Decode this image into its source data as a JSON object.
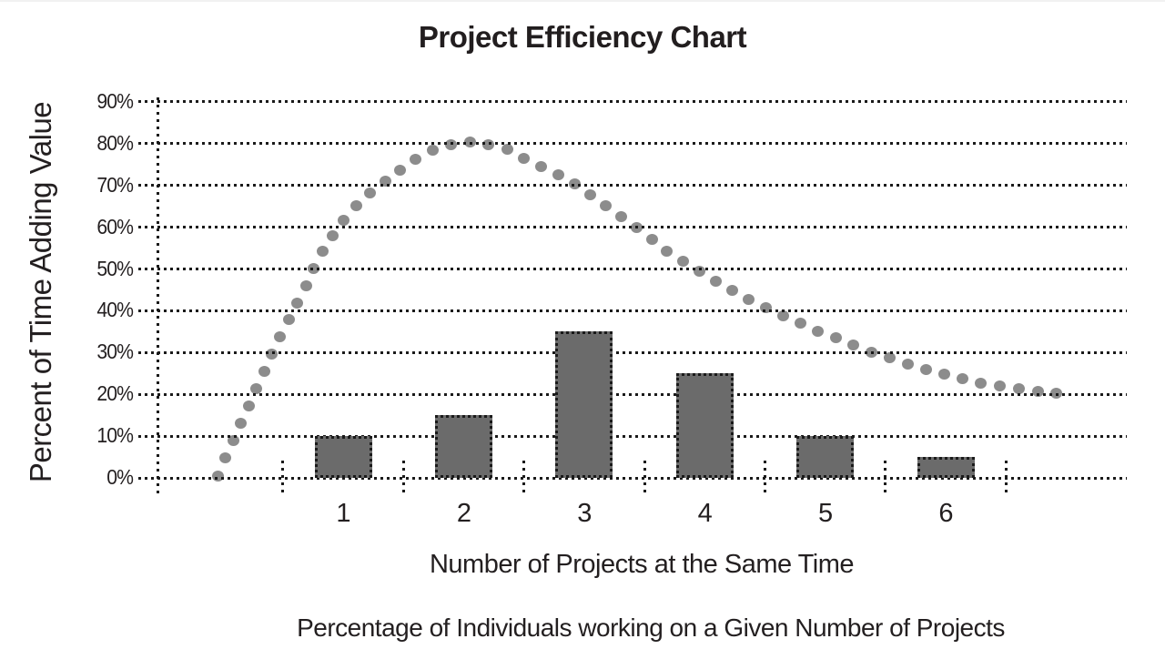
{
  "title": "Project Efficiency Chart",
  "chart_data": {
    "type": "bar",
    "title": "Project Efficiency Chart",
    "x_axis_label": "Number of Projects at the Same Time",
    "y_axis_label": "Percent of Time Adding Value",
    "caption": "Percentage of Individuals working on a Given Number of Projects",
    "categories": [
      "1",
      "2",
      "3",
      "4",
      "5",
      "6"
    ],
    "series": [
      {
        "name": "Percentage of Individuals working on a Given Number of Projects",
        "type": "bar",
        "values": [
          10,
          15,
          35,
          25,
          10,
          5
        ]
      },
      {
        "name": "Percent of Time Adding Value",
        "type": "dotted-curve",
        "points": [
          [
            -0.04,
            0.5
          ],
          [
            0.02,
            4.6
          ],
          [
            0.16,
            13.5
          ],
          [
            0.29,
            22
          ],
          [
            0.42,
            30.5
          ],
          [
            0.57,
            39
          ],
          [
            0.71,
            47
          ],
          [
            0.78,
            52
          ],
          [
            0.9,
            57.5
          ],
          [
            1.02,
            62.5
          ],
          [
            1.17,
            67
          ],
          [
            1.3,
            70
          ],
          [
            1.44,
            73
          ],
          [
            1.58,
            76
          ],
          [
            1.73,
            78.4
          ],
          [
            1.9,
            79.7
          ],
          [
            2.07,
            80.4
          ],
          [
            2.23,
            79.7
          ],
          [
            2.39,
            78.4
          ],
          [
            2.53,
            76
          ],
          [
            2.68,
            74
          ],
          [
            2.83,
            72
          ],
          [
            2.97,
            69.7
          ],
          [
            3.09,
            67
          ],
          [
            3.24,
            64
          ],
          [
            3.36,
            61.6
          ],
          [
            3.65,
            55
          ],
          [
            3.95,
            49.7
          ],
          [
            4.26,
            44.2
          ],
          [
            4.45,
            41.6
          ],
          [
            4.61,
            39.5
          ],
          [
            4.77,
            37.3
          ],
          [
            4.95,
            35
          ],
          [
            5.11,
            33.3
          ],
          [
            5.27,
            31.4
          ],
          [
            5.43,
            29.6
          ],
          [
            5.58,
            28.3
          ],
          [
            5.74,
            26.8
          ],
          [
            5.91,
            25.3
          ],
          [
            6.08,
            24.2
          ],
          [
            6.23,
            23.1
          ],
          [
            6.4,
            22.2
          ],
          [
            6.57,
            21.6
          ],
          [
            6.73,
            20.9
          ],
          [
            6.92,
            20.2
          ]
        ]
      }
    ],
    "y_ticks": [
      "0%",
      "10%",
      "20%",
      "30%",
      "40%",
      "50%",
      "60%",
      "70%",
      "80%",
      "90%"
    ],
    "y_tick_values": [
      0,
      10,
      20,
      30,
      40,
      50,
      60,
      70,
      80,
      90
    ],
    "ylim": [
      0,
      90
    ],
    "grid": "dotted horizontal lines at every 10%",
    "legend": "none",
    "colors": {
      "bar_fill": "#6b6b6b",
      "bar_border": "#1a1a1a",
      "curve_dot": "#8c8c8c",
      "grid_dot": "#1a1a1a",
      "text": "#231f20"
    }
  }
}
